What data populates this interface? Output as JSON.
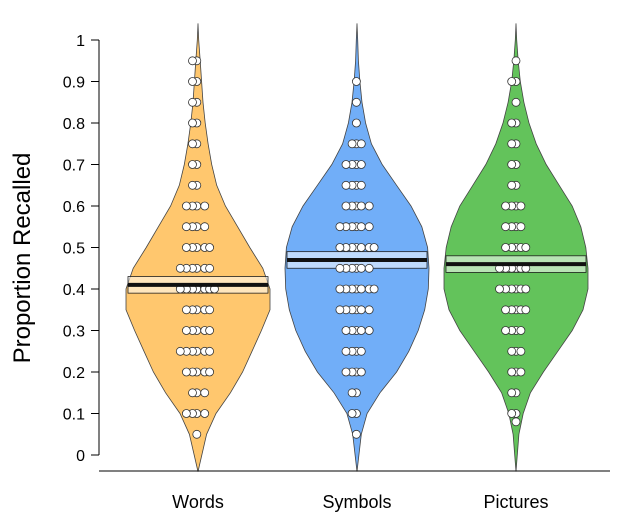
{
  "chart_data": {
    "type": "violin",
    "title": "",
    "xlabel": "",
    "ylabel": "Proportion Recalled",
    "ylim": [
      0,
      1
    ],
    "yticks": [
      "0",
      "0.1",
      "0.2",
      "0.3",
      "0.4",
      "0.5",
      "0.6",
      "0.7",
      "0.8",
      "0.9",
      "1"
    ],
    "grid": false,
    "series": [
      {
        "category": "Words",
        "color": "#FFC76E",
        "mean": 0.41,
        "band": [
          0.39,
          0.43
        ],
        "density_shape": [
          [
            -0.04,
            0
          ],
          [
            0.05,
            0.12
          ],
          [
            0.1,
            0.25
          ],
          [
            0.15,
            0.45
          ],
          [
            0.2,
            0.62
          ],
          [
            0.25,
            0.75
          ],
          [
            0.3,
            0.88
          ],
          [
            0.35,
            1.0
          ],
          [
            0.4,
            1.0
          ],
          [
            0.45,
            0.9
          ],
          [
            0.5,
            0.72
          ],
          [
            0.55,
            0.55
          ],
          [
            0.6,
            0.38
          ],
          [
            0.65,
            0.26
          ],
          [
            0.7,
            0.19
          ],
          [
            0.75,
            0.14
          ],
          [
            0.8,
            0.1
          ],
          [
            0.85,
            0.07
          ],
          [
            0.9,
            0.05
          ],
          [
            0.95,
            0.03
          ],
          [
            1.0,
            0.01
          ],
          [
            1.04,
            0
          ]
        ],
        "points": [
          0.95,
          0.95,
          0.9,
          0.9,
          0.85,
          0.85,
          0.8,
          0.8,
          0.75,
          0.75,
          0.7,
          0.7,
          0.65,
          0.65,
          0.6,
          0.6,
          0.6,
          0.6,
          0.55,
          0.55,
          0.55,
          0.55,
          0.5,
          0.5,
          0.5,
          0.5,
          0.5,
          0.45,
          0.45,
          0.45,
          0.45,
          0.45,
          0.45,
          0.4,
          0.4,
          0.4,
          0.4,
          0.4,
          0.4,
          0.4,
          0.35,
          0.35,
          0.35,
          0.35,
          0.35,
          0.3,
          0.3,
          0.3,
          0.3,
          0.3,
          0.25,
          0.25,
          0.25,
          0.25,
          0.25,
          0.25,
          0.2,
          0.2,
          0.2,
          0.2,
          0.2,
          0.15,
          0.15,
          0.15,
          0.1,
          0.1,
          0.1,
          0.1,
          0.05
        ]
      },
      {
        "category": "Symbols",
        "color": "#71AEF8",
        "mean": 0.47,
        "band": [
          0.45,
          0.49
        ],
        "density_shape": [
          [
            -0.04,
            0
          ],
          [
            0.05,
            0.06
          ],
          [
            0.1,
            0.14
          ],
          [
            0.15,
            0.32
          ],
          [
            0.2,
            0.55
          ],
          [
            0.25,
            0.72
          ],
          [
            0.3,
            0.85
          ],
          [
            0.35,
            0.94
          ],
          [
            0.4,
            0.99
          ],
          [
            0.45,
            1.0
          ],
          [
            0.5,
            0.98
          ],
          [
            0.55,
            0.9
          ],
          [
            0.6,
            0.75
          ],
          [
            0.65,
            0.55
          ],
          [
            0.7,
            0.35
          ],
          [
            0.75,
            0.2
          ],
          [
            0.8,
            0.12
          ],
          [
            0.85,
            0.07
          ],
          [
            0.9,
            0.04
          ],
          [
            0.95,
            0.02
          ],
          [
            1.0,
            0.01
          ],
          [
            1.04,
            0
          ]
        ],
        "points": [
          0.9,
          0.85,
          0.8,
          0.75,
          0.75,
          0.75,
          0.7,
          0.7,
          0.7,
          0.7,
          0.65,
          0.65,
          0.65,
          0.65,
          0.6,
          0.6,
          0.6,
          0.6,
          0.6,
          0.55,
          0.55,
          0.55,
          0.55,
          0.55,
          0.55,
          0.5,
          0.5,
          0.5,
          0.5,
          0.5,
          0.5,
          0.5,
          0.45,
          0.45,
          0.45,
          0.45,
          0.45,
          0.45,
          0.4,
          0.4,
          0.4,
          0.4,
          0.4,
          0.4,
          0.4,
          0.35,
          0.35,
          0.35,
          0.35,
          0.35,
          0.35,
          0.3,
          0.3,
          0.3,
          0.3,
          0.3,
          0.25,
          0.25,
          0.25,
          0.25,
          0.2,
          0.2,
          0.2,
          0.2,
          0.15,
          0.15,
          0.1,
          0.1,
          0.05
        ]
      },
      {
        "category": "Pictures",
        "color": "#63C35B",
        "mean": 0.46,
        "band": [
          0.44,
          0.48
        ],
        "density_shape": [
          [
            -0.04,
            0
          ],
          [
            0.05,
            0.04
          ],
          [
            0.1,
            0.1
          ],
          [
            0.15,
            0.2
          ],
          [
            0.2,
            0.38
          ],
          [
            0.25,
            0.58
          ],
          [
            0.3,
            0.78
          ],
          [
            0.35,
            0.93
          ],
          [
            0.4,
            1.0
          ],
          [
            0.45,
            1.0
          ],
          [
            0.5,
            0.97
          ],
          [
            0.55,
            0.9
          ],
          [
            0.6,
            0.78
          ],
          [
            0.65,
            0.6
          ],
          [
            0.7,
            0.42
          ],
          [
            0.75,
            0.28
          ],
          [
            0.8,
            0.18
          ],
          [
            0.85,
            0.11
          ],
          [
            0.9,
            0.06
          ],
          [
            0.95,
            0.03
          ],
          [
            1.0,
            0.01
          ],
          [
            1.04,
            0
          ]
        ],
        "points": [
          0.95,
          0.9,
          0.9,
          0.85,
          0.8,
          0.8,
          0.75,
          0.75,
          0.7,
          0.7,
          0.65,
          0.65,
          0.6,
          0.6,
          0.6,
          0.6,
          0.55,
          0.55,
          0.55,
          0.55,
          0.5,
          0.5,
          0.5,
          0.5,
          0.5,
          0.45,
          0.45,
          0.45,
          0.45,
          0.45,
          0.45,
          0.4,
          0.4,
          0.4,
          0.4,
          0.4,
          0.4,
          0.35,
          0.35,
          0.35,
          0.35,
          0.35,
          0.3,
          0.3,
          0.3,
          0.3,
          0.25,
          0.25,
          0.25,
          0.2,
          0.2,
          0.2,
          0.15,
          0.15,
          0.1,
          0.1,
          0.08
        ]
      }
    ]
  }
}
